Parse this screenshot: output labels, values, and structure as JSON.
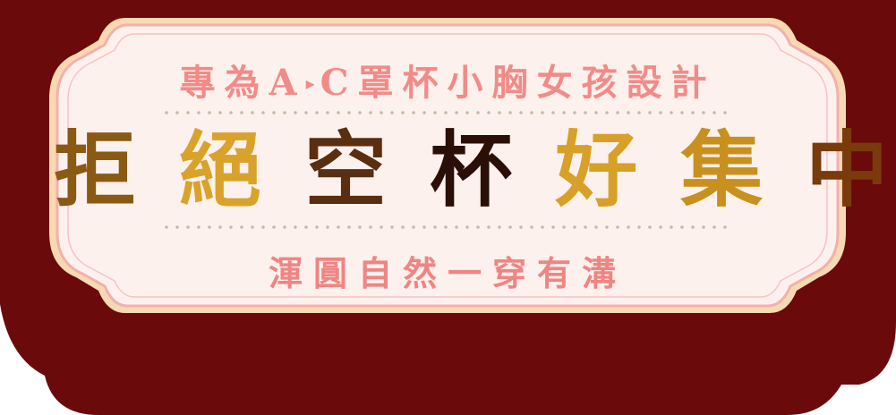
{
  "banner": {
    "top_parts": [
      "專為A",
      "▸",
      "C罩杯小胸女孩設計"
    ],
    "main_chars": [
      "拒",
      "絕",
      "空",
      "杯",
      "好",
      "集",
      "中"
    ],
    "bottom_text": "渾圓自然一穿有溝"
  },
  "colors": {
    "backdrop": "#6a0a0a",
    "card_fill": "#fdf1ee",
    "card_border": "#f3b0ac",
    "accent_text": "#f28b87",
    "gold": "#d9a22a",
    "brown": "#5a2e10"
  }
}
